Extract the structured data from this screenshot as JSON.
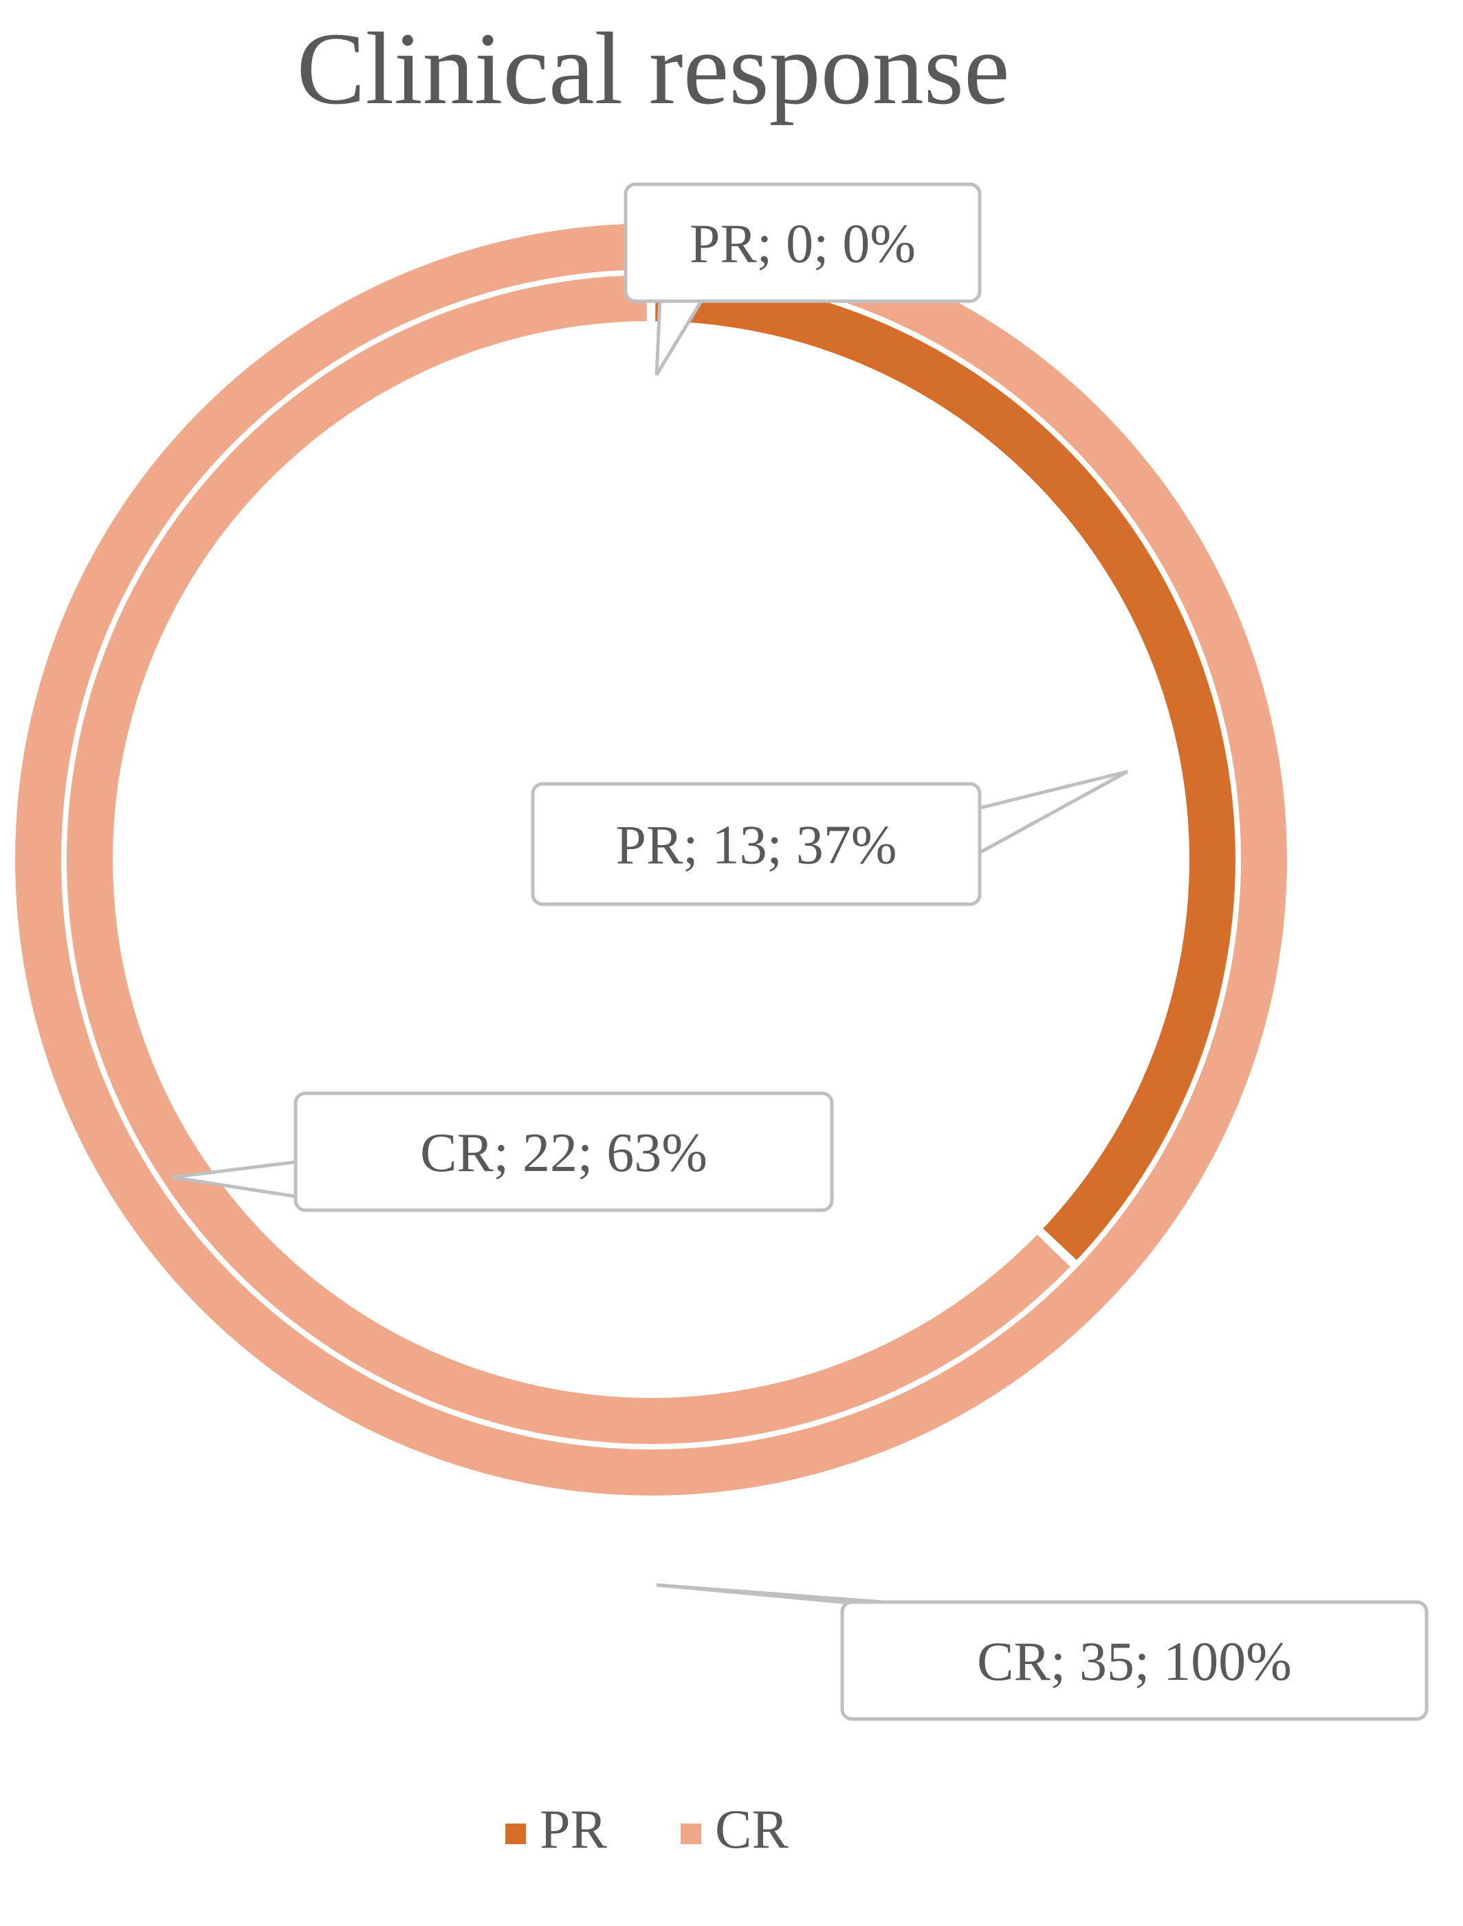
{
  "colors": {
    "PR": "#d56e2b",
    "CR": "#f0a88a"
  },
  "chart_data": {
    "type": "pie",
    "subtype": "doughnut",
    "title": "Clinical response",
    "legend": {
      "placement": "bottom",
      "entries": [
        "PR",
        "CR"
      ]
    },
    "categories": [
      "PR",
      "CR"
    ],
    "series": [
      {
        "ring": "outer",
        "values": [
          0,
          35
        ],
        "percentages": [
          "0%",
          "100%"
        ],
        "labels": [
          "PR; 0; 0%",
          "CR; 35; 100%"
        ]
      },
      {
        "ring": "inner",
        "values": [
          13,
          22
        ],
        "percentages": [
          "37%",
          "63%"
        ],
        "labels": [
          "PR; 13; 37%",
          "CR; 22; 63%"
        ]
      }
    ]
  }
}
